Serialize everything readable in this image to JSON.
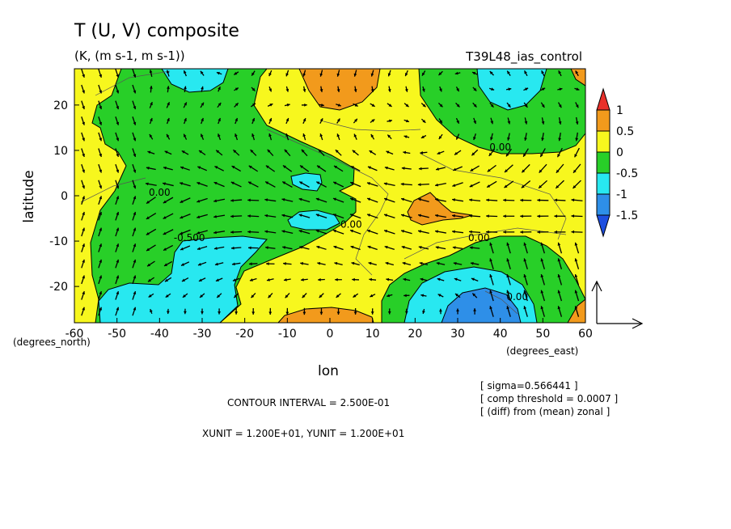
{
  "chart_data": {
    "type": "heatmap",
    "title": "T (U, V) composite",
    "subtitle": "(K, (m s-1, m s-1))",
    "run_label": "T39L48_ias_control",
    "xlabel": "lon",
    "ylabel": "latitude",
    "x_unit_label": "(degrees_east)",
    "y_unit_label": "(degrees_north)",
    "xlim": [
      -60,
      60
    ],
    "ylim": [
      -28,
      28
    ],
    "x_ticks": [
      -60,
      -50,
      -40,
      -30,
      -20,
      -10,
      0,
      10,
      20,
      30,
      40,
      50,
      60
    ],
    "x_tick_labels": [
      "-60",
      "-50",
      "-40",
      "-30",
      "-20",
      "-10",
      "0",
      "10",
      "20",
      "30",
      "40",
      "50",
      "60"
    ],
    "y_ticks": [
      20,
      10,
      0,
      -10,
      -20
    ],
    "y_tick_labels": [
      "20",
      "10",
      "0",
      "-10",
      "-20"
    ],
    "colorbar": {
      "labels": [
        "1",
        "0.5",
        "0",
        "-0.5",
        "-1",
        "-1.5"
      ],
      "colors": [
        "#e8302a",
        "#f29a1c",
        "#f7f71e",
        "#28cf28",
        "#28e8f0",
        "#2e8fe8",
        "#1e4fe0"
      ]
    },
    "fill_colors": {
      "above_0.5": "#f29a1c",
      "0_to_0.5": "#f7f71e",
      "-0.5_to_0": "#28cf28",
      "-1_to_-0.5": "#28e8f0",
      "below_-1": "#2e8fe8"
    },
    "contour_labels": [
      {
        "text": "0.00",
        "lon": -40,
        "lat": 0
      },
      {
        "text": "-0.500",
        "lon": -33,
        "lat": -10
      },
      {
        "text": "0.00",
        "lon": 5,
        "lat": -7
      },
      {
        "text": "0.00",
        "lon": 40,
        "lat": 10
      },
      {
        "text": "0.00",
        "lon": 35,
        "lat": -10
      },
      {
        "text": "0.00",
        "lon": 44,
        "lat": -23
      }
    ],
    "vector_reference": {
      "xunit": "1.200E+01",
      "yunit": "1.200E+01"
    }
  },
  "notes": {
    "contour_interval": "CONTOUR INTERVAL = 2.500E-01",
    "units_line": "XUNIT = 1.200E+01, YUNIT = 1.200E+01",
    "sigma": "[ sigma=0.566441 ]",
    "threshold": "[ comp threshold = 0.0007 ]",
    "diff": "[ (diff) from (mean) zonal ]"
  }
}
